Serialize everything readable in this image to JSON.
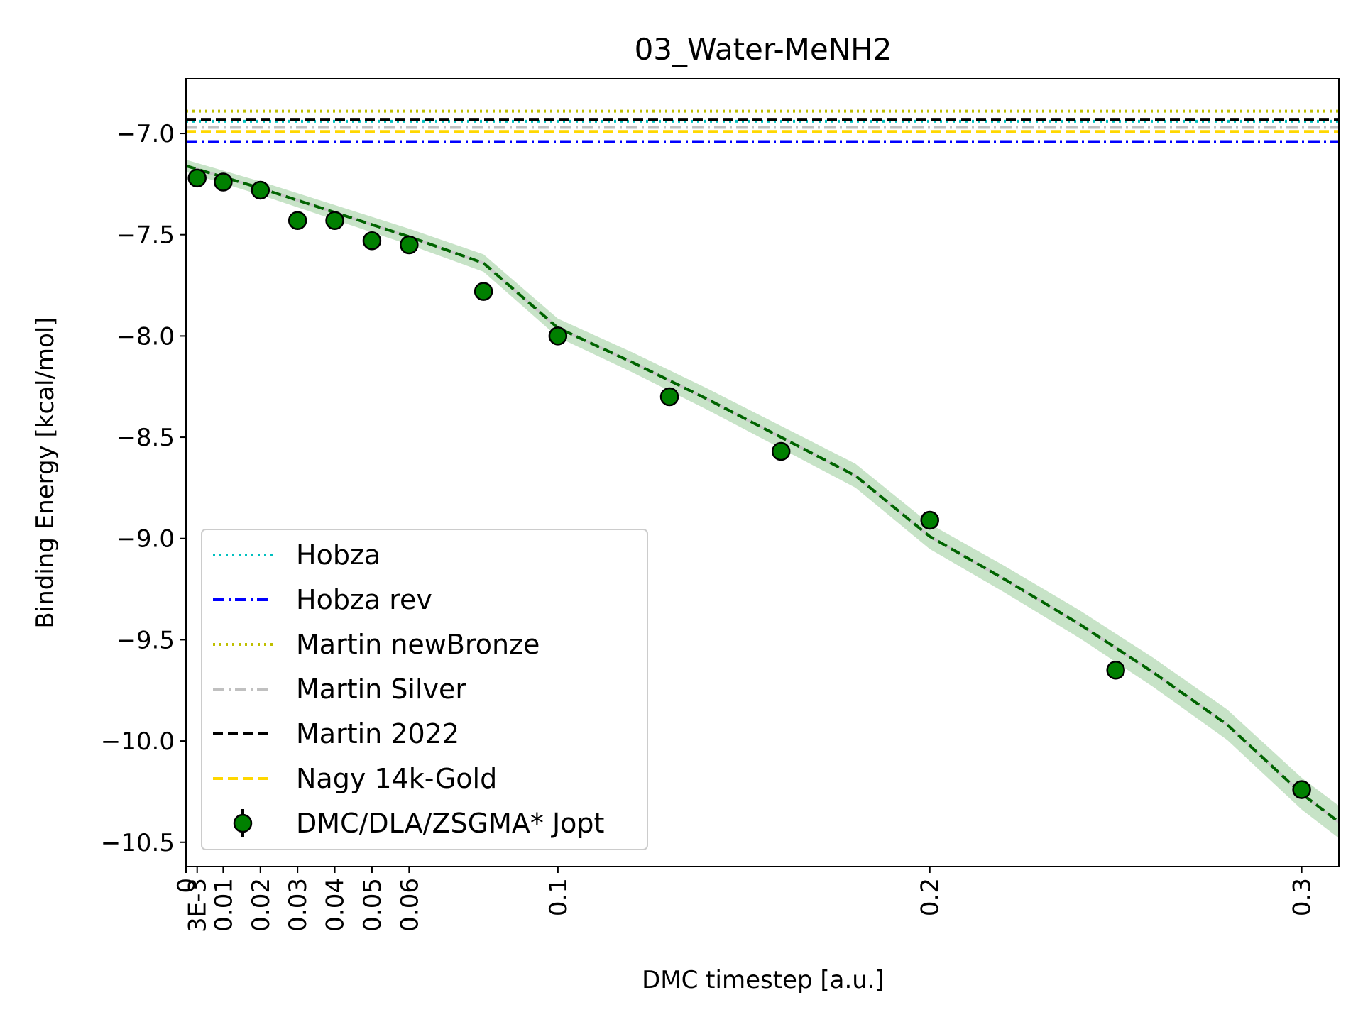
{
  "chart_data": {
    "type": "scatter",
    "title": "03_Water-MeNH2",
    "xlabel": "DMC timestep [a.u.]",
    "ylabel": "Binding Energy [kcal/mol]",
    "xlim": [
      0,
      0.31
    ],
    "ylim": [
      -10.62,
      -6.73
    ],
    "x_ticks": [
      0,
      0.003,
      0.01,
      0.02,
      0.03,
      0.04,
      0.05,
      0.06,
      0.1,
      0.2,
      0.3
    ],
    "x_tick_labels": [
      "0",
      "3E-3",
      "0.01",
      "0.02",
      "0.03",
      "0.04",
      "0.05",
      "0.06",
      "0.1",
      "0.2",
      "0.3"
    ],
    "y_ticks": [
      -7.0,
      -7.5,
      -8.0,
      -8.5,
      -9.0,
      -9.5,
      -10.0,
      -10.5
    ],
    "y_tick_labels": [
      "−7.0",
      "−7.5",
      "−8.0",
      "−8.5",
      "−9.0",
      "−9.5",
      "−10.0",
      "−10.5"
    ],
    "grid": false,
    "legend_position": "lower-left",
    "reference_lines": [
      {
        "name": "Hobza",
        "y": -6.94,
        "color": "#00bfbf",
        "style": "dotted"
      },
      {
        "name": "Hobza rev",
        "y": -7.04,
        "color": "#0000ff",
        "style": "dashdot"
      },
      {
        "name": "Martin newBronze",
        "y": -6.89,
        "color": "#bfbf00",
        "style": "dotted"
      },
      {
        "name": "Martin Silver",
        "y": -6.97,
        "color": "#c0c0c0",
        "style": "dashdot"
      },
      {
        "name": "Martin 2022",
        "y": -6.93,
        "color": "#000000",
        "style": "dashed"
      },
      {
        "name": "Nagy 14k-Gold",
        "y": -6.99,
        "color": "#ffd700",
        "style": "dashed"
      }
    ],
    "series": [
      {
        "name": "DMC/DLA/ZSGMA* Jopt",
        "color": "#008000",
        "x": [
          0.003,
          0.01,
          0.02,
          0.03,
          0.04,
          0.05,
          0.06,
          0.08,
          0.1,
          0.13,
          0.16,
          0.2,
          0.25,
          0.3
        ],
        "y": [
          -7.22,
          -7.24,
          -7.28,
          -7.43,
          -7.43,
          -7.53,
          -7.55,
          -7.78,
          -8.0,
          -8.3,
          -8.57,
          -8.91,
          -9.65,
          -10.24
        ]
      }
    ],
    "fit": {
      "color": "#006400",
      "band_color": "#008000",
      "x": [
        0,
        0.02,
        0.04,
        0.06,
        0.08,
        0.1,
        0.12,
        0.14,
        0.16,
        0.18,
        0.2,
        0.22,
        0.24,
        0.26,
        0.28,
        0.3,
        0.31
      ],
      "y": [
        -7.16,
        -7.27,
        -7.39,
        -7.51,
        -7.64,
        -7.96,
        -8.13,
        -8.31,
        -8.5,
        -8.69,
        -8.99,
        -9.2,
        -9.42,
        -9.66,
        -9.92,
        -10.26,
        -10.4
      ]
    }
  }
}
